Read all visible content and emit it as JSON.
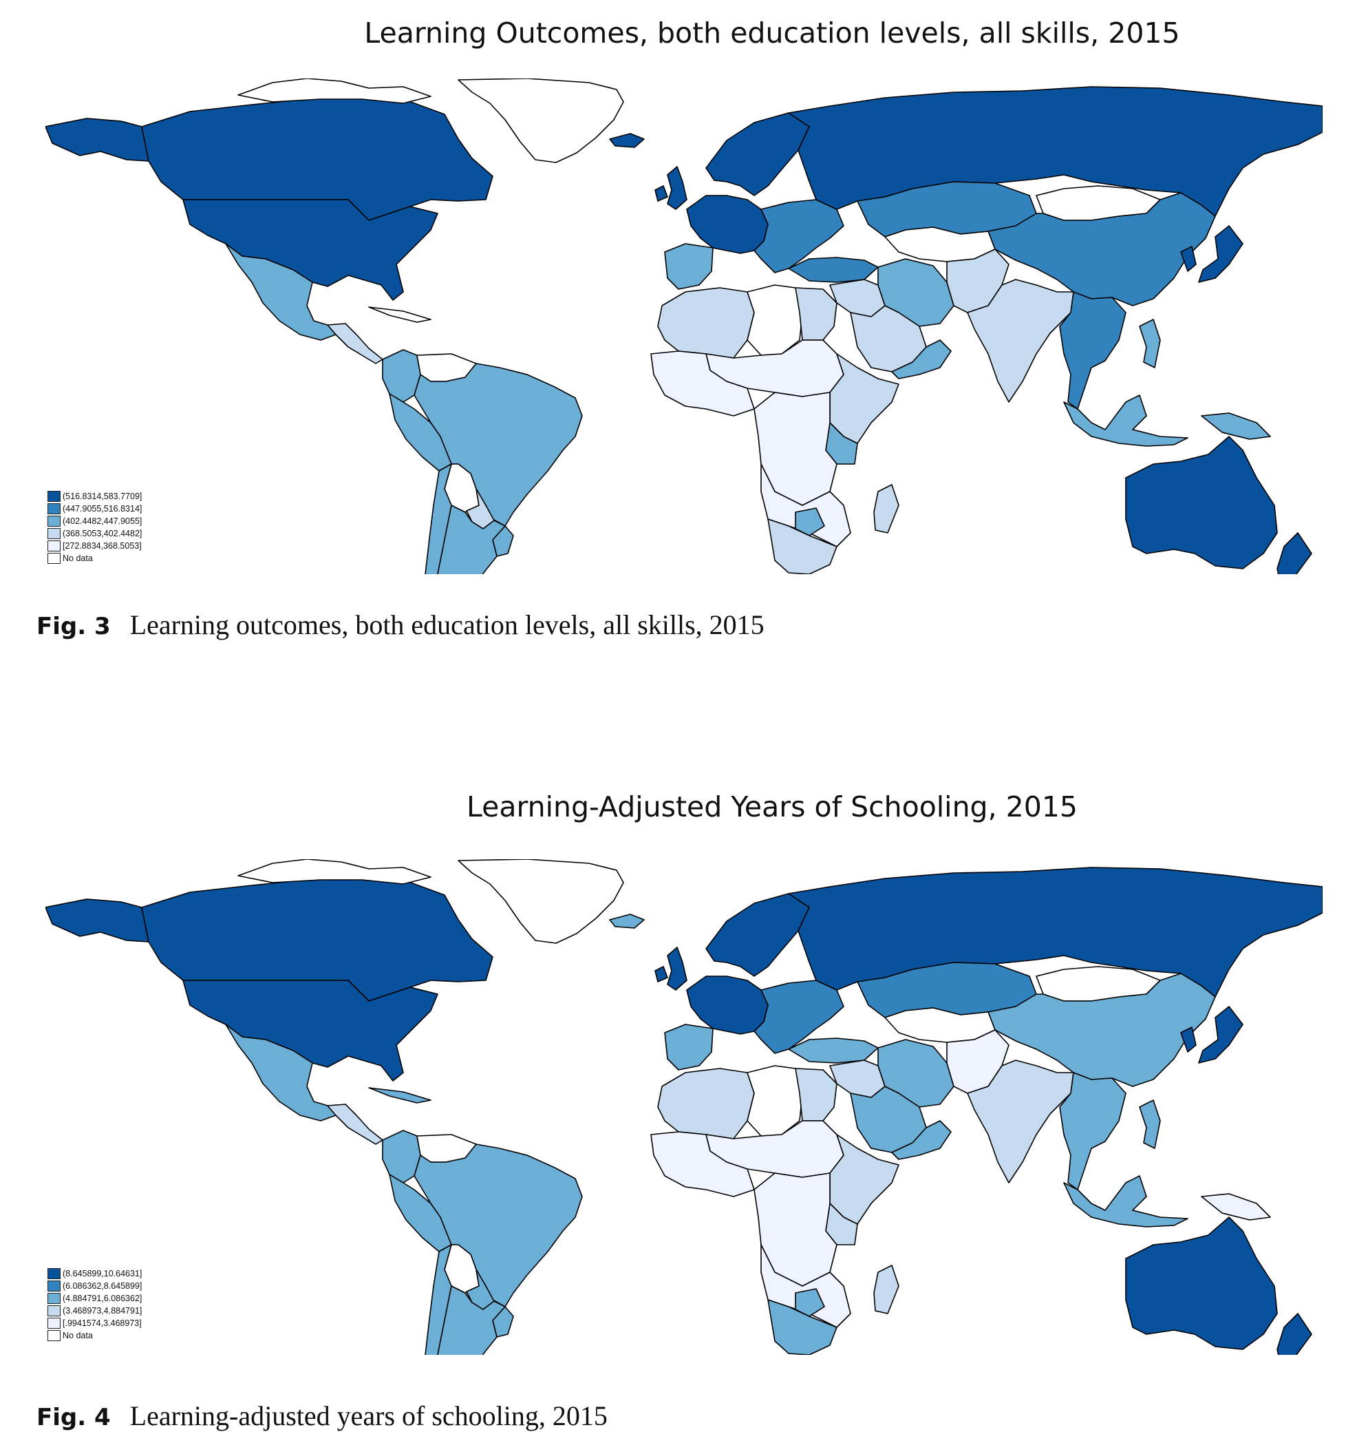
{
  "colors": {
    "c5": "#08519c",
    "c4": "#3182bd",
    "c3": "#6baed6",
    "c2": "#c6dbef",
    "c1": "#eff3ff",
    "nodata": "#ffffff",
    "stroke": "#000000"
  },
  "figures": [
    {
      "map_title": "Learning Outcomes, both education levels, all skills, 2015",
      "caption_label": "Fig. 3",
      "caption_text": "Learning outcomes, both education levels, all skills, 2015",
      "legend": [
        {
          "label": "(516.8314,583.7709]",
          "color": "#08519c"
        },
        {
          "label": "(447.9055,516.8314]",
          "color": "#3182bd"
        },
        {
          "label": "(402.4482,447.9055]",
          "color": "#6baed6"
        },
        {
          "label": "(368.5053,402.4482]",
          "color": "#c6dbef"
        },
        {
          "label": "[272.8834,368.5053]",
          "color": "#eff3ff"
        },
        {
          "label": "No data",
          "color": "#ffffff"
        }
      ],
      "regions": {
        "greenland": "nodata",
        "iceland": "c5",
        "canada": "c5",
        "usa": "c5",
        "alaska": "c5",
        "mexico": "c3",
        "central_america": "c2",
        "cuba": "nodata",
        "colombia": "c3",
        "venezuela": "nodata",
        "peru": "c3",
        "brazil": "c3",
        "bolivia": "nodata",
        "paraguay": "c2",
        "chile": "c3",
        "argentina": "c3",
        "uruguay": "c3",
        "europe_west": "c5",
        "iberia": "c3",
        "europe_east": "c4",
        "scandinavia": "c5",
        "uk": "c5",
        "ireland": "c5",
        "russia": "c5",
        "kazakhstan": "c4",
        "mongolia": "nodata",
        "china": "c4",
        "japan": "c5",
        "korea": "c5",
        "central_asia": "nodata",
        "turkey": "c4",
        "iran": "c3",
        "middle_east": "c2",
        "saudi": "c2",
        "arabia_south": "c3",
        "pakistan": "c2",
        "india": "c2",
        "southeast_asia": "c4",
        "indonesia": "c3",
        "papua": "c3",
        "philippines": "c3",
        "australia": "c5",
        "new_zealand": "c5",
        "north_africa_w": "c2",
        "north_africa_c": "nodata",
        "egypt": "c2",
        "sahel": "c1",
        "west_africa": "c1",
        "central_africa": "c1",
        "east_africa": "c2",
        "kenya": "c3",
        "southern_africa": "c1",
        "botswana": "c3",
        "south_africa": "c2",
        "madagascar": "c2"
      }
    },
    {
      "map_title": "Learning-Adjusted Years of Schooling, 2015",
      "caption_label": "Fig. 4",
      "caption_text": "Learning-adjusted years of schooling, 2015",
      "legend": [
        {
          "label": "(8.645899,10.64631]",
          "color": "#08519c"
        },
        {
          "label": "(6.086362,8.645899]",
          "color": "#3182bd"
        },
        {
          "label": "(4.884791,6.086362]",
          "color": "#6baed6"
        },
        {
          "label": "(3.468973,4.884791]",
          "color": "#c6dbef"
        },
        {
          "label": "[.9941574,3.468973]",
          "color": "#eff3ff"
        },
        {
          "label": "No data",
          "color": "#ffffff"
        }
      ],
      "regions": {
        "greenland": "nodata",
        "iceland": "c3",
        "canada": "c5",
        "usa": "c5",
        "alaska": "c5",
        "mexico": "c3",
        "central_america": "c2",
        "cuba": "c3",
        "colombia": "c3",
        "venezuela": "nodata",
        "peru": "c3",
        "brazil": "c3",
        "bolivia": "nodata",
        "paraguay": "c3",
        "chile": "c3",
        "argentina": "c3",
        "uruguay": "c3",
        "europe_west": "c5",
        "iberia": "c3",
        "europe_east": "c4",
        "scandinavia": "c5",
        "uk": "c5",
        "ireland": "c5",
        "russia": "c5",
        "kazakhstan": "c4",
        "mongolia": "nodata",
        "china": "c3",
        "japan": "c5",
        "korea": "c5",
        "central_asia": "nodata",
        "turkey": "c3",
        "iran": "c3",
        "middle_east": "c2",
        "saudi": "c3",
        "arabia_south": "c3",
        "pakistan": "c1",
        "india": "c2",
        "southeast_asia": "c3",
        "indonesia": "c3",
        "papua": "c1",
        "philippines": "c3",
        "australia": "c5",
        "new_zealand": "c5",
        "north_africa_w": "c2",
        "north_africa_c": "nodata",
        "egypt": "c2",
        "sahel": "c1",
        "west_africa": "c1",
        "central_africa": "c1",
        "east_africa": "c2",
        "kenya": "c2",
        "southern_africa": "c1",
        "botswana": "c3",
        "south_africa": "c3",
        "madagascar": "c2"
      }
    }
  ]
}
